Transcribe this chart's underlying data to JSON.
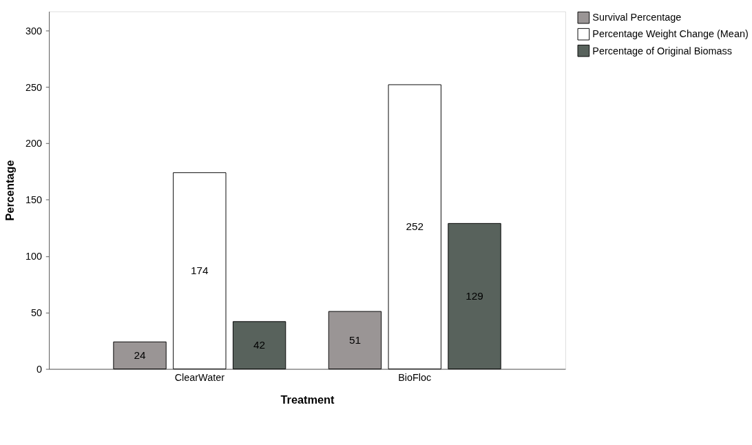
{
  "chart_data": {
    "type": "bar",
    "xlabel": "Treatment",
    "ylabel": "Percentage",
    "categories": [
      "ClearWater",
      "BioFloc"
    ],
    "series": [
      {
        "name": "Survival Percentage",
        "color": "#9a9595",
        "values": [
          24,
          51
        ]
      },
      {
        "name": "Percentage Weight Change (Mean)",
        "color": "#ffffff",
        "values": [
          174,
          252
        ]
      },
      {
        "name": "Percentage of Original Biomass",
        "color": "#58625c",
        "values": [
          42,
          129
        ]
      }
    ],
    "ylim": [
      0,
      317
    ],
    "yticks": [
      0,
      50,
      100,
      150,
      200,
      250,
      300
    ],
    "grid": false,
    "legend": "top right",
    "data_labels": true
  }
}
